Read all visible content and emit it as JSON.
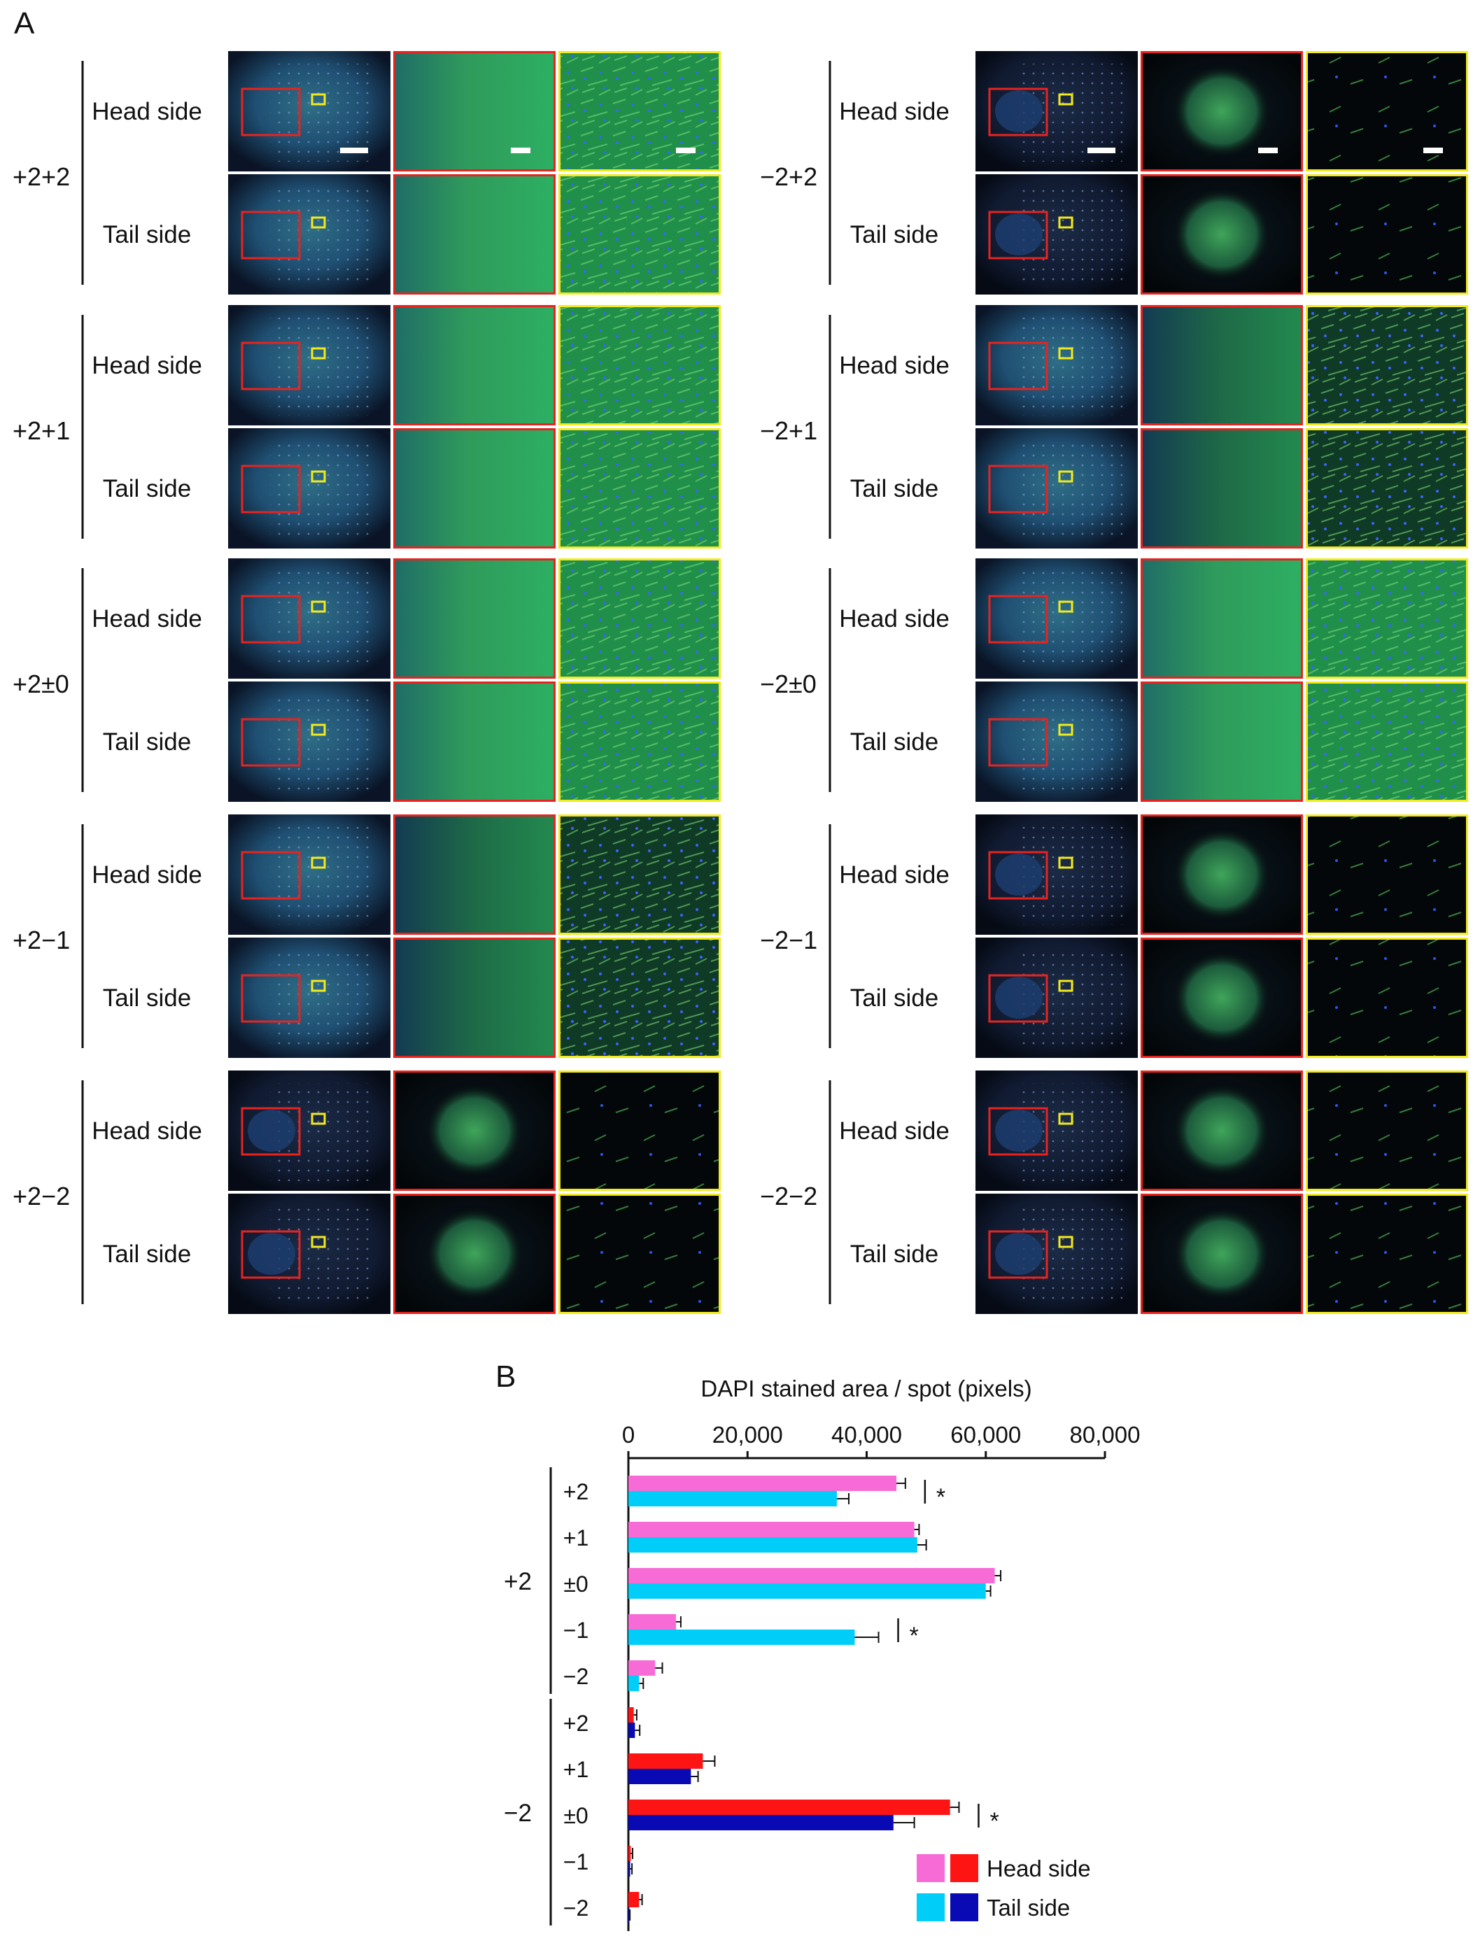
{
  "panel_a": {
    "label": "A",
    "side_labels": [
      "Head side",
      "Tail side"
    ],
    "colors": {
      "overview_box": "#e8231f",
      "detail_box": "#f2ea1c",
      "scale_bar": "#ffffff"
    },
    "columns": [
      {
        "conditions": [
          "+2+2",
          "+2+1",
          "+2±0",
          "+2−1",
          "+2−2"
        ]
      },
      {
        "conditions": [
          "−2+2",
          "−2+1",
          "−2±0",
          "−2−1",
          "−2−2"
        ]
      }
    ]
  },
  "chart_data": {
    "label": "B",
    "type": "bar",
    "orientation": "horizontal",
    "xlabel": "DAPI stained area / spot (pixels)",
    "xlim": [
      0,
      80000
    ],
    "xticks": [
      0,
      20000,
      40000,
      60000,
      80000
    ],
    "xtick_labels": [
      "0",
      "20,000",
      "40,000",
      "60,000",
      "80,000"
    ],
    "axis_position": "top",
    "significance_marker": "*",
    "groups": [
      {
        "label": "+2",
        "categories": [
          "+2",
          "+1",
          "±0",
          "−1",
          "−2"
        ],
        "series": [
          {
            "name": "Head side",
            "color": "#f76bd6",
            "values": [
              45000,
              48000,
              61500,
              8000,
              4500
            ],
            "errors": [
              1500,
              800,
              1000,
              800,
              1200
            ]
          },
          {
            "name": "Tail side",
            "color": "#00cdf8",
            "values": [
              35000,
              48500,
              60000,
              38000,
              1800
            ],
            "errors": [
              2000,
              1500,
              800,
              4000,
              700
            ]
          }
        ],
        "significant": [
          true,
          false,
          false,
          true,
          false
        ]
      },
      {
        "label": "−2",
        "categories": [
          "+2",
          "+1",
          "±0",
          "−1",
          "−2"
        ],
        "series": [
          {
            "name": "Head side",
            "color": "#ff1414",
            "values": [
              900,
              12500,
              54000,
              400,
              1800
            ],
            "errors": [
              500,
              2000,
              1500,
              300,
              500
            ]
          },
          {
            "name": "Tail side",
            "color": "#0a0ab4",
            "values": [
              1100,
              10500,
              44500,
              300,
              150
            ],
            "errors": [
              800,
              1200,
              3500,
              300,
              100
            ]
          }
        ],
        "significant": [
          false,
          false,
          true,
          false,
          false
        ]
      }
    ],
    "legend": {
      "position": "bottom-right",
      "entries": [
        {
          "name": "Head side",
          "colors": [
            "#f76bd6",
            "#ff1414"
          ]
        },
        {
          "name": "Tail side",
          "colors": [
            "#00cdf8",
            "#0a0ab4"
          ]
        }
      ]
    }
  }
}
